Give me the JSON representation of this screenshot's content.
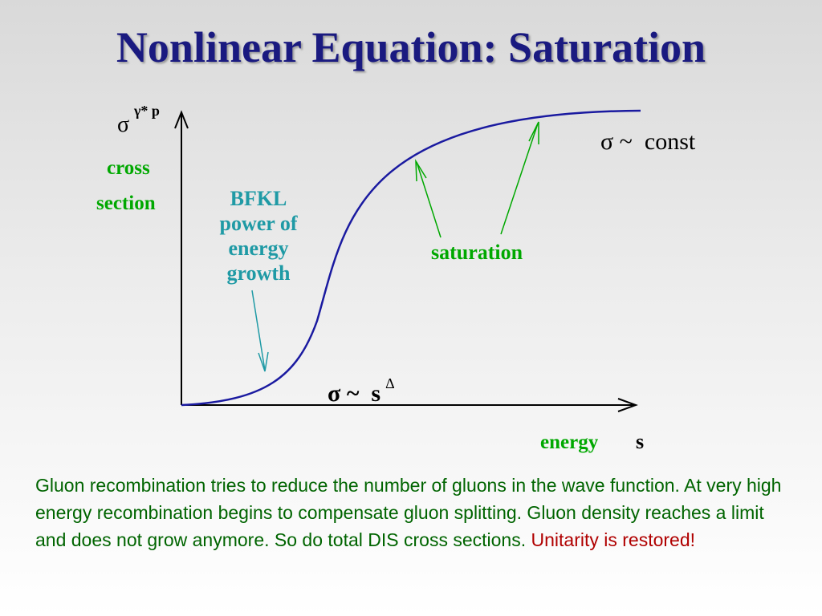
{
  "title": "Nonlinear Equation: Saturation",
  "diagram": {
    "y_symbol": "σ",
    "y_superscript": "γ* p",
    "y_label_line1": "cross",
    "y_label_line2": "section",
    "x_label": "energy",
    "x_symbol": "s",
    "bfkl_lines": [
      "BFKL",
      "power of",
      "energy",
      "growth"
    ],
    "saturation_label": "saturation",
    "const_formula": "σ ~  const",
    "power_formula": "σ ~  s",
    "power_exponent": "Δ",
    "colors": {
      "curve": "#1a1aa0",
      "axes": "#000000",
      "green_text": "#00a800",
      "teal_text": "#1f9aa5",
      "caption_green": "#006400",
      "caption_red": "#b00000"
    }
  },
  "caption": {
    "text": "Gluon recombination tries to reduce the number of gluons in the wave function. At very high energy recombination begins to compensate gluon splitting. Gluon density reaches a limit and does not grow anymore. So do total DIS cross sections. ",
    "highlight": "Unitarity is restored!"
  }
}
